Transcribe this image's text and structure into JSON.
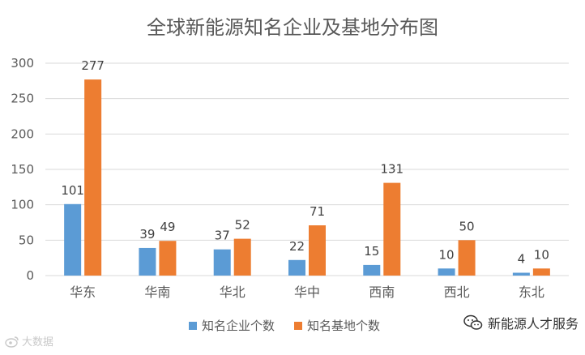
{
  "chart_data": {
    "type": "bar",
    "title": "全球新能源知名企业及基地分布图",
    "categories": [
      "华东",
      "华南",
      "华北",
      "华中",
      "西南",
      "西北",
      "东北"
    ],
    "series": [
      {
        "name": "知名企业个数",
        "values": [
          101,
          39,
          37,
          22,
          15,
          10,
          4
        ],
        "color": "#5b9bd5"
      },
      {
        "name": "知名基地个数",
        "values": [
          277,
          49,
          52,
          71,
          131,
          50,
          10
        ],
        "color": "#ed7d31"
      }
    ],
    "y_ticks": [
      "0",
      "50",
      "100",
      "150",
      "200",
      "250",
      "300"
    ],
    "ylim": [
      0,
      300
    ],
    "grid": true,
    "legend_position": "bottom"
  },
  "watermarks": {
    "left_text": "大数据",
    "right_text": "新能源人才服务"
  },
  "colors": {
    "grid": "#d9d9d9",
    "axis_text": "#595959",
    "title": "#595959"
  }
}
